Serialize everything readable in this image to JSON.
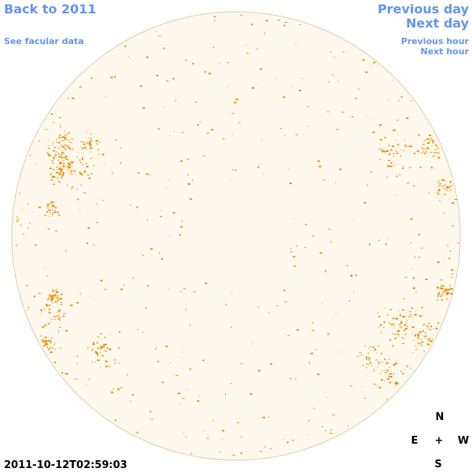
{
  "nav": {
    "back_to_year": "Back to 2011",
    "facular_data": "See facular data",
    "previous_day": "Previous day",
    "next_day": "Next day",
    "previous_hour": "Previous hour",
    "next_hour": "Next hour"
  },
  "timestamp": "2011-10-12T02:59:03",
  "compass": {
    "north": "N",
    "east": "E",
    "center": "+",
    "west": "W",
    "south": "S"
  }
}
